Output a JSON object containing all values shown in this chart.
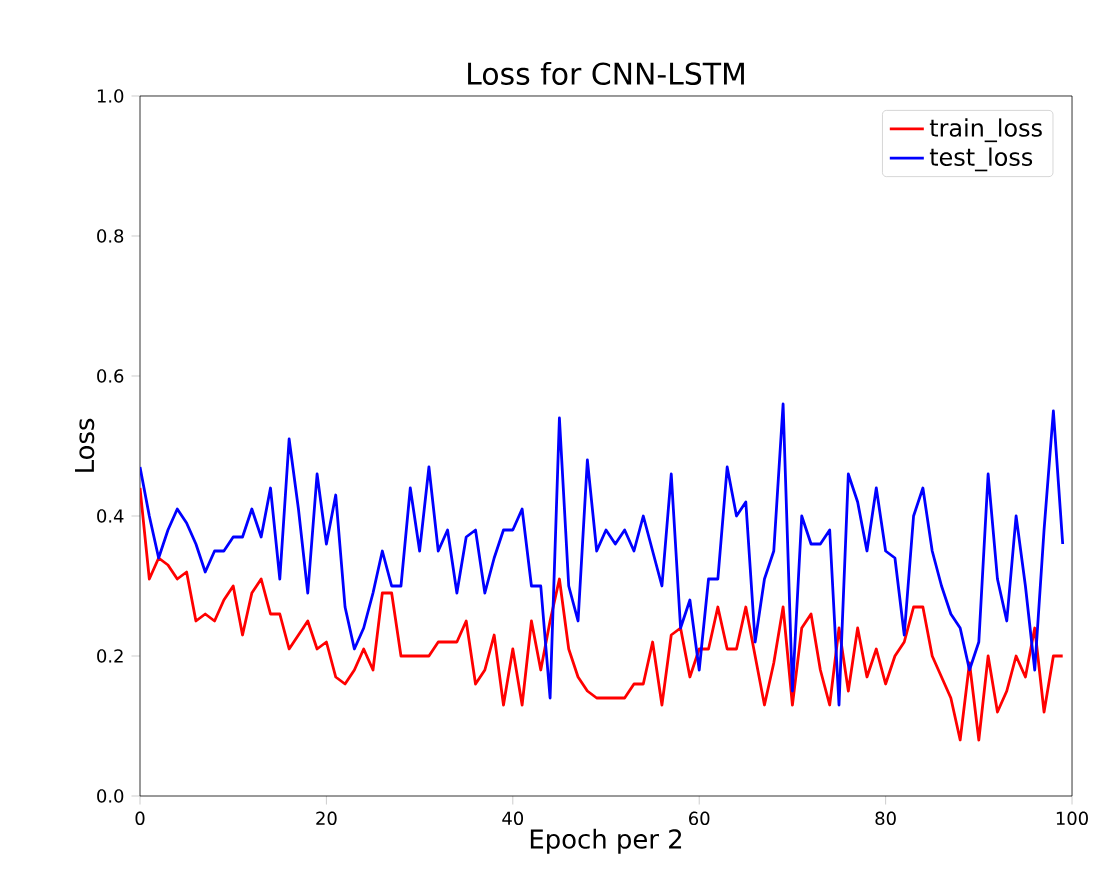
{
  "chart_data": {
    "type": "line",
    "title": "Loss for CNN-LSTM",
    "xlabel": "Epoch per 2",
    "ylabel": "Loss",
    "x": [
      0,
      1,
      2,
      3,
      4,
      5,
      6,
      7,
      8,
      9,
      10,
      11,
      12,
      13,
      14,
      15,
      16,
      17,
      18,
      19,
      20,
      21,
      22,
      23,
      24,
      25,
      26,
      27,
      28,
      29,
      30,
      31,
      32,
      33,
      34,
      35,
      36,
      37,
      38,
      39,
      40,
      41,
      42,
      43,
      44,
      45,
      46,
      47,
      48,
      49,
      50,
      51,
      52,
      53,
      54,
      55,
      56,
      57,
      58,
      59,
      60,
      61,
      62,
      63,
      64,
      65,
      66,
      67,
      68,
      69,
      70,
      71,
      72,
      73,
      74,
      75,
      76,
      77,
      78,
      79,
      80,
      81,
      82,
      83,
      84,
      85,
      86,
      87,
      88,
      89,
      90,
      91,
      92,
      93,
      94,
      95,
      96,
      97,
      98,
      99
    ],
    "series": [
      {
        "name": "train_loss",
        "color": "#ff0000",
        "values": [
          0.44,
          0.31,
          0.34,
          0.33,
          0.31,
          0.32,
          0.25,
          0.26,
          0.25,
          0.28,
          0.3,
          0.23,
          0.29,
          0.31,
          0.26,
          0.26,
          0.21,
          0.23,
          0.25,
          0.21,
          0.22,
          0.17,
          0.16,
          0.18,
          0.21,
          0.18,
          0.29,
          0.29,
          0.2,
          0.2,
          0.2,
          0.2,
          0.22,
          0.22,
          0.22,
          0.25,
          0.16,
          0.18,
          0.23,
          0.13,
          0.21,
          0.13,
          0.25,
          0.18,
          0.25,
          0.31,
          0.21,
          0.17,
          0.15,
          0.14,
          0.14,
          0.14,
          0.14,
          0.16,
          0.16,
          0.22,
          0.13,
          0.23,
          0.24,
          0.17,
          0.21,
          0.21,
          0.27,
          0.21,
          0.21,
          0.27,
          0.2,
          0.13,
          0.19,
          0.27,
          0.13,
          0.24,
          0.26,
          0.18,
          0.13,
          0.24,
          0.15,
          0.24,
          0.17,
          0.21,
          0.16,
          0.2,
          0.22,
          0.27,
          0.27,
          0.2,
          0.17,
          0.14,
          0.08,
          0.19,
          0.08,
          0.2,
          0.12,
          0.15,
          0.2,
          0.17,
          0.24,
          0.12,
          0.2,
          0.2
        ]
      },
      {
        "name": "test_loss",
        "color": "#0000ff",
        "values": [
          0.47,
          0.4,
          0.34,
          0.38,
          0.41,
          0.39,
          0.36,
          0.32,
          0.35,
          0.35,
          0.37,
          0.37,
          0.41,
          0.37,
          0.44,
          0.31,
          0.51,
          0.41,
          0.29,
          0.46,
          0.36,
          0.43,
          0.27,
          0.21,
          0.24,
          0.29,
          0.35,
          0.3,
          0.3,
          0.44,
          0.35,
          0.47,
          0.35,
          0.38,
          0.29,
          0.37,
          0.38,
          0.29,
          0.34,
          0.38,
          0.38,
          0.41,
          0.3,
          0.3,
          0.14,
          0.54,
          0.3,
          0.25,
          0.48,
          0.35,
          0.38,
          0.36,
          0.38,
          0.35,
          0.4,
          0.35,
          0.3,
          0.46,
          0.24,
          0.28,
          0.18,
          0.31,
          0.31,
          0.47,
          0.4,
          0.42,
          0.22,
          0.31,
          0.35,
          0.56,
          0.15,
          0.4,
          0.36,
          0.36,
          0.38,
          0.13,
          0.46,
          0.42,
          0.35,
          0.44,
          0.35,
          0.34,
          0.23,
          0.4,
          0.44,
          0.35,
          0.3,
          0.26,
          0.24,
          0.18,
          0.22,
          0.46,
          0.31,
          0.25,
          0.4,
          0.3,
          0.18,
          0.38,
          0.55,
          0.36
        ]
      }
    ],
    "xlim": [
      0,
      100
    ],
    "ylim": [
      0,
      1
    ],
    "xticks": [
      0,
      20,
      40,
      60,
      80,
      100
    ],
    "yticks": [
      {
        "value": 0,
        "label": "0.0"
      },
      {
        "value": 0.2,
        "label": "0.2"
      },
      {
        "value": 0.4,
        "label": "0.4"
      },
      {
        "value": 0.6,
        "label": "0.6"
      },
      {
        "value": 0.8,
        "label": "0.8"
      },
      {
        "value": 1,
        "label": "1.0"
      }
    ],
    "legend": "top right",
    "grid": false,
    "marker": "none",
    "line_style": "solid"
  }
}
